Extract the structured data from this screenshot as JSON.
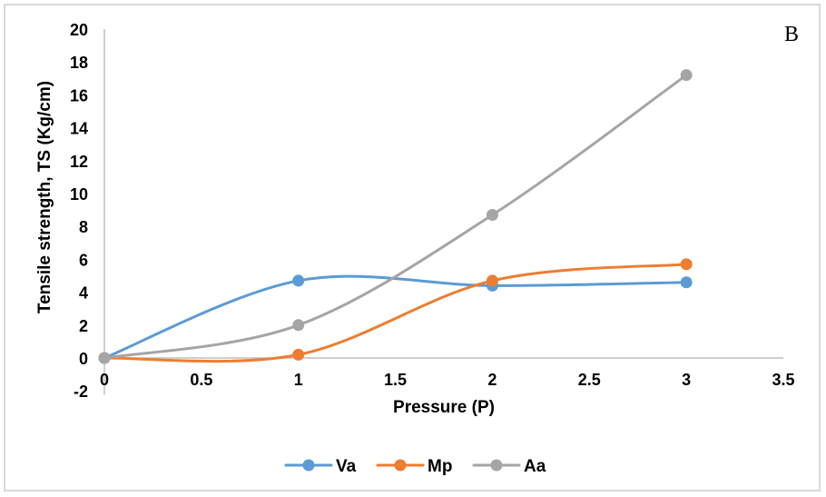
{
  "chart_data": {
    "type": "line",
    "smooth": true,
    "title": "",
    "panel_label": "B",
    "xlabel": "Pressure (P)",
    "ylabel": "Tensile strength, TS (Kg/cm)",
    "xlim": [
      0,
      3.5
    ],
    "ylim": [
      -2,
      20
    ],
    "x_ticks": [
      "0",
      "0.5",
      "1",
      "1.5",
      "2",
      "2.5",
      "3",
      "3.5"
    ],
    "y_ticks": [
      "-2",
      "0",
      "2",
      "4",
      "6",
      "8",
      "10",
      "12",
      "14",
      "16",
      "18",
      "20"
    ],
    "grid": false,
    "legend_position": "bottom",
    "x": [
      0,
      1,
      2,
      3
    ],
    "series": [
      {
        "name": "Va",
        "color": "#5b9bd5",
        "values": [
          0,
          4.7,
          4.4,
          4.6
        ]
      },
      {
        "name": "Mp",
        "color": "#ed7d31",
        "values": [
          0,
          0.2,
          4.7,
          5.7
        ]
      },
      {
        "name": "Aa",
        "color": "#a5a5a5",
        "values": [
          0,
          2.0,
          8.7,
          17.2
        ]
      }
    ]
  }
}
